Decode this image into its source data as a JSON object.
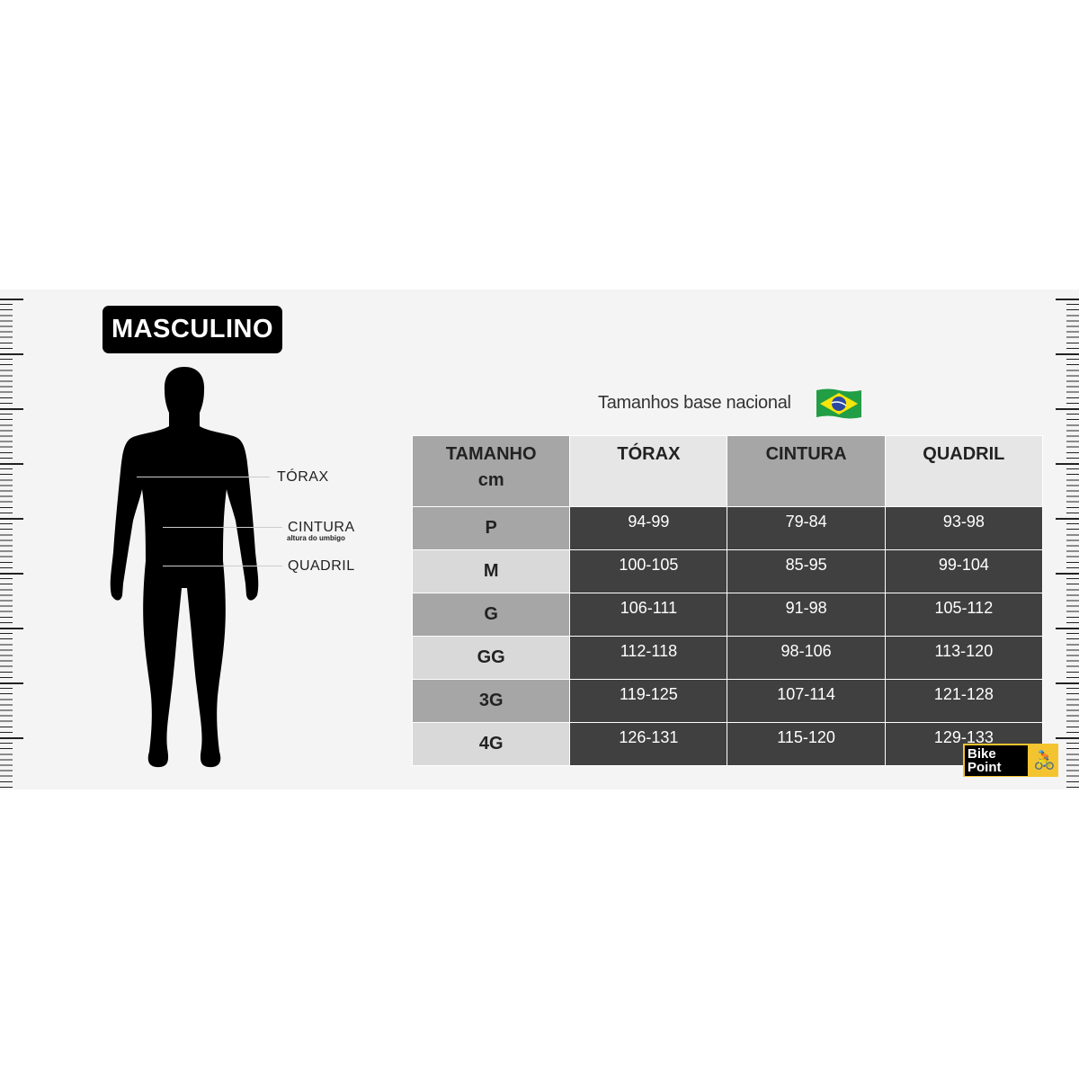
{
  "title": "MASCULINO",
  "subtitle": "Tamanhos base nacional",
  "flag_icon": "brazil-flag",
  "measurements": {
    "torax": "TÓRAX",
    "cintura": "CINTURA",
    "cintura_note": "altura do umbigo",
    "quadril": "QUADRIL"
  },
  "table": {
    "headers": [
      "TAMANHO",
      "TÓRAX",
      "CINTURA",
      "QUADRIL"
    ],
    "header_unit": "cm",
    "rows": [
      [
        "P",
        "94-99",
        "79-84",
        "93-98"
      ],
      [
        "M",
        "100-105",
        "85-95",
        "99-104"
      ],
      [
        "G",
        "106-111",
        "91-98",
        "105-112"
      ],
      [
        "GG",
        "112-118",
        "98-106",
        "113-120"
      ],
      [
        "3G",
        "119-125",
        "107-114",
        "121-128"
      ],
      [
        "4G",
        "126-131",
        "115-120",
        "129-133"
      ]
    ]
  },
  "logo": {
    "line1": "Bike",
    "line2": "Point"
  },
  "colors": {
    "header_dark": "#a6a6a6",
    "header_light": "#e6e6e6",
    "cell": "#404040",
    "logo": "#f4c430"
  }
}
